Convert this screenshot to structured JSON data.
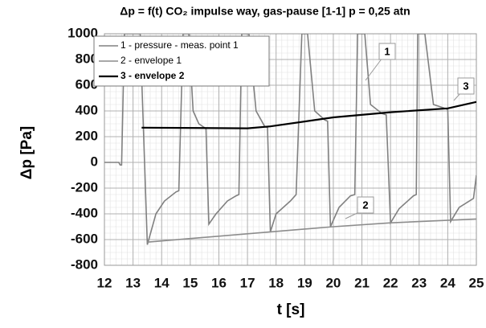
{
  "chart_data": {
    "type": "line",
    "title": "Δp = f(t)  CO₂ impulse way, gas-pause [1-1]  p = 0,25 atn",
    "xlabel": "t [s]",
    "ylabel": "Δp [Pa]",
    "xlim": [
      12,
      25
    ],
    "xticks": [
      12,
      13,
      14,
      15,
      16,
      17,
      18,
      19,
      20,
      21,
      22,
      23,
      24,
      25
    ],
    "ylim": [
      -800,
      1000
    ],
    "yticks": [
      -800,
      -600,
      -400,
      -200,
      0,
      200,
      400,
      600,
      800,
      1000
    ],
    "grid": true,
    "legend": "upper left",
    "annotations": [
      "1",
      "2",
      "3"
    ],
    "series": [
      {
        "name": "1 - pressure - meas. point 1",
        "color": "#808080",
        "x": [
          12,
          12.5,
          12.55,
          12.6,
          12.7,
          13.25,
          13.5,
          13.8,
          14.1,
          14.5,
          14.6,
          14.75,
          14.95,
          15.1,
          15.3,
          15.5,
          15.55,
          15.65,
          15.9,
          16.3,
          16.6,
          16.7,
          16.8,
          17.05,
          17.3,
          17.6,
          17.7,
          17.8,
          18.0,
          18.5,
          18.7,
          18.9,
          19.1,
          19.35,
          19.7,
          19.8,
          19.9,
          20.2,
          20.6,
          20.75,
          20.85,
          21.1,
          21.3,
          21.7,
          21.85,
          22.0,
          22.3,
          22.8,
          22.9,
          22.95,
          23.2,
          23.5,
          23.9,
          24.0,
          24.1,
          24.4,
          24.9,
          25.0
        ],
        "values": [
          0,
          0,
          -20,
          -20,
          1000,
          1000,
          -640,
          -400,
          -300,
          -230,
          -220,
          1000,
          1000,
          400,
          300,
          270,
          260,
          -480,
          -400,
          -300,
          -260,
          -250,
          1000,
          1000,
          400,
          280,
          270,
          -540,
          -400,
          -300,
          -250,
          1000,
          1000,
          400,
          330,
          320,
          -500,
          -350,
          -260,
          -250,
          1000,
          1000,
          450,
          380,
          370,
          -470,
          -360,
          -260,
          -250,
          1000,
          1000,
          450,
          420,
          410,
          -460,
          -350,
          -280,
          -100
        ]
      },
      {
        "name": "2 - envelope 1",
        "color": "#8c8c8c",
        "x": [
          13.5,
          17.8,
          20,
          22,
          25
        ],
        "values": [
          -620,
          -540,
          -500,
          -470,
          -440
        ]
      },
      {
        "name": "3 - envelope 2",
        "color": "#000000",
        "x": [
          13.3,
          17,
          17.8,
          20,
          22,
          24,
          25
        ],
        "values": [
          270,
          265,
          280,
          350,
          390,
          420,
          470
        ]
      }
    ]
  }
}
